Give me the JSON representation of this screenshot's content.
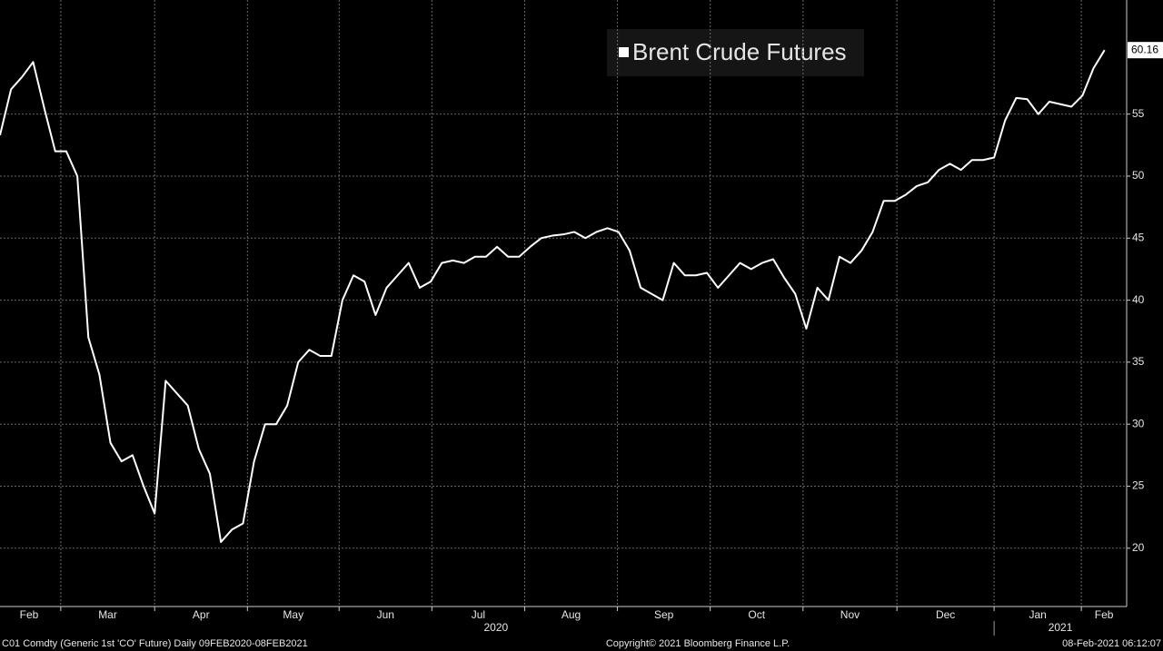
{
  "chart_data": {
    "type": "line",
    "series": [
      {
        "name": "Brent Crude Futures",
        "color": "#ffffff",
        "values": [
          53.3,
          57,
          58,
          59.2,
          55.5,
          52,
          52,
          50,
          37,
          34,
          28.5,
          27,
          27.5,
          25,
          22.8,
          33.5,
          32.5,
          31.5,
          28,
          26,
          20.5,
          21.5,
          22,
          27,
          30,
          30,
          31.5,
          35,
          36,
          35.5,
          35.5,
          40,
          42,
          41.5,
          38.8,
          41,
          42,
          43,
          41,
          41.5,
          43,
          43.2,
          43,
          43.5,
          43.5,
          44.3,
          43.5,
          43.5,
          44.3,
          45,
          45.2,
          45.3,
          45.5,
          45,
          45.5,
          45.8,
          45.5,
          44,
          41,
          40.5,
          40,
          43,
          42,
          42,
          42.2,
          41,
          42,
          43,
          42.5,
          43,
          43.3,
          41.8,
          40.5,
          37.7,
          41,
          40,
          43.5,
          43,
          44,
          45.5,
          48,
          48,
          48.5,
          49.2,
          49.5,
          50.5,
          51,
          50.5,
          51.3,
          51.3,
          51.5,
          54.5,
          56.3,
          56.2,
          55,
          56,
          55.8,
          55.6,
          56.5,
          58.7,
          60.16
        ]
      }
    ],
    "xlim": [
      0,
      102
    ],
    "xticks": [
      {
        "value": -0.24,
        "label": "Feb"
      },
      {
        "value": 5.5,
        "label": "Mar"
      },
      {
        "value": 14.0,
        "label": "Apr"
      },
      {
        "value": 22.4,
        "label": "May"
      },
      {
        "value": 30.7,
        "label": "Jun"
      },
      {
        "value": 39.1,
        "label": "Jul"
      },
      {
        "value": 47.5,
        "label": "Aug"
      },
      {
        "value": 55.9,
        "label": "Sep"
      },
      {
        "value": 64.3,
        "label": "Oct"
      },
      {
        "value": 72.7,
        "label": "Nov"
      },
      {
        "value": 81.2,
        "label": "Dec"
      },
      {
        "value": 90.0,
        "label": "Jan"
      },
      {
        "value": 97.9,
        "label": "Feb"
      }
    ],
    "x2ticks": [
      {
        "value": 44.9,
        "label": "2020"
      },
      {
        "value": 96,
        "label": "2021"
      }
    ],
    "ylim": [
      15.3,
      64.2
    ],
    "yticks": [
      20,
      25,
      30,
      35,
      40,
      45,
      50,
      55
    ],
    "grid": true,
    "legend": "top-center",
    "footer_left": "C01 Comdty (Generic 1st 'CO' Future)  Daily 09FEB2020-08FEB2021",
    "footer_center": "Copyright© 2021 Bloomberg Finance L.P.",
    "footer_right": "08-Feb-2021 06:12:07"
  }
}
